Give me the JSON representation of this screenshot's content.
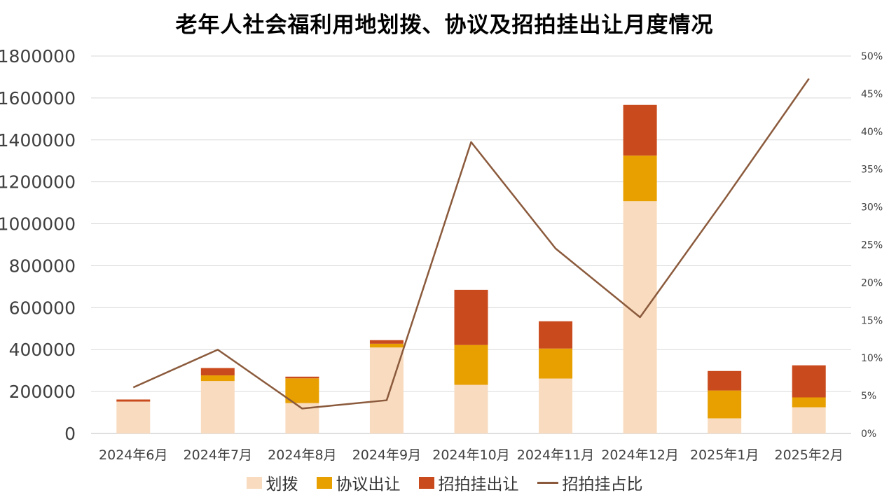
{
  "chart_data": {
    "type": "bar",
    "title": "老年人社会福利用地划拨、协议及招拍挂出让月度情况",
    "categories": [
      "2024年6月",
      "2024年7月",
      "2024年8月",
      "2024年9月",
      "2024年10月",
      "2024年11月",
      "2024年12月",
      "2025年1月",
      "2025年2月"
    ],
    "series": [
      {
        "name": "划拨",
        "kind": "bar",
        "axis": "left",
        "color": "#F9DCC0",
        "values": [
          152000,
          250000,
          145000,
          410000,
          232000,
          262000,
          1108000,
          72000,
          125000
        ]
      },
      {
        "name": "协议出让",
        "kind": "bar",
        "axis": "left",
        "color": "#E8A000",
        "values": [
          0,
          27000,
          118000,
          18000,
          190000,
          143000,
          217000,
          133000,
          47000
        ]
      },
      {
        "name": "招拍挂出让",
        "kind": "bar",
        "axis": "left",
        "color": "#C94A1C",
        "values": [
          10000,
          35000,
          8000,
          17000,
          263000,
          130000,
          242000,
          93000,
          153000
        ]
      },
      {
        "name": "招拍挂占比",
        "kind": "line",
        "axis": "right",
        "color": "#8B5A3C",
        "values": [
          0.061,
          0.111,
          0.033,
          0.044,
          0.386,
          0.245,
          0.154,
          0.31,
          0.47
        ]
      }
    ],
    "y_left": {
      "min": 0,
      "max": 1800000,
      "ticks": [
        "0",
        "200000",
        "400000",
        "600000",
        "800000",
        "1000000",
        "1200000",
        "1400000",
        "1600000",
        "1800000"
      ]
    },
    "y_right": {
      "min": 0,
      "max": 0.5,
      "ticks": [
        "0%",
        "5%",
        "10%",
        "15%",
        "20%",
        "25%",
        "30%",
        "35%",
        "40%",
        "45%",
        "50%"
      ]
    },
    "grid": true,
    "legend_position": "bottom"
  }
}
